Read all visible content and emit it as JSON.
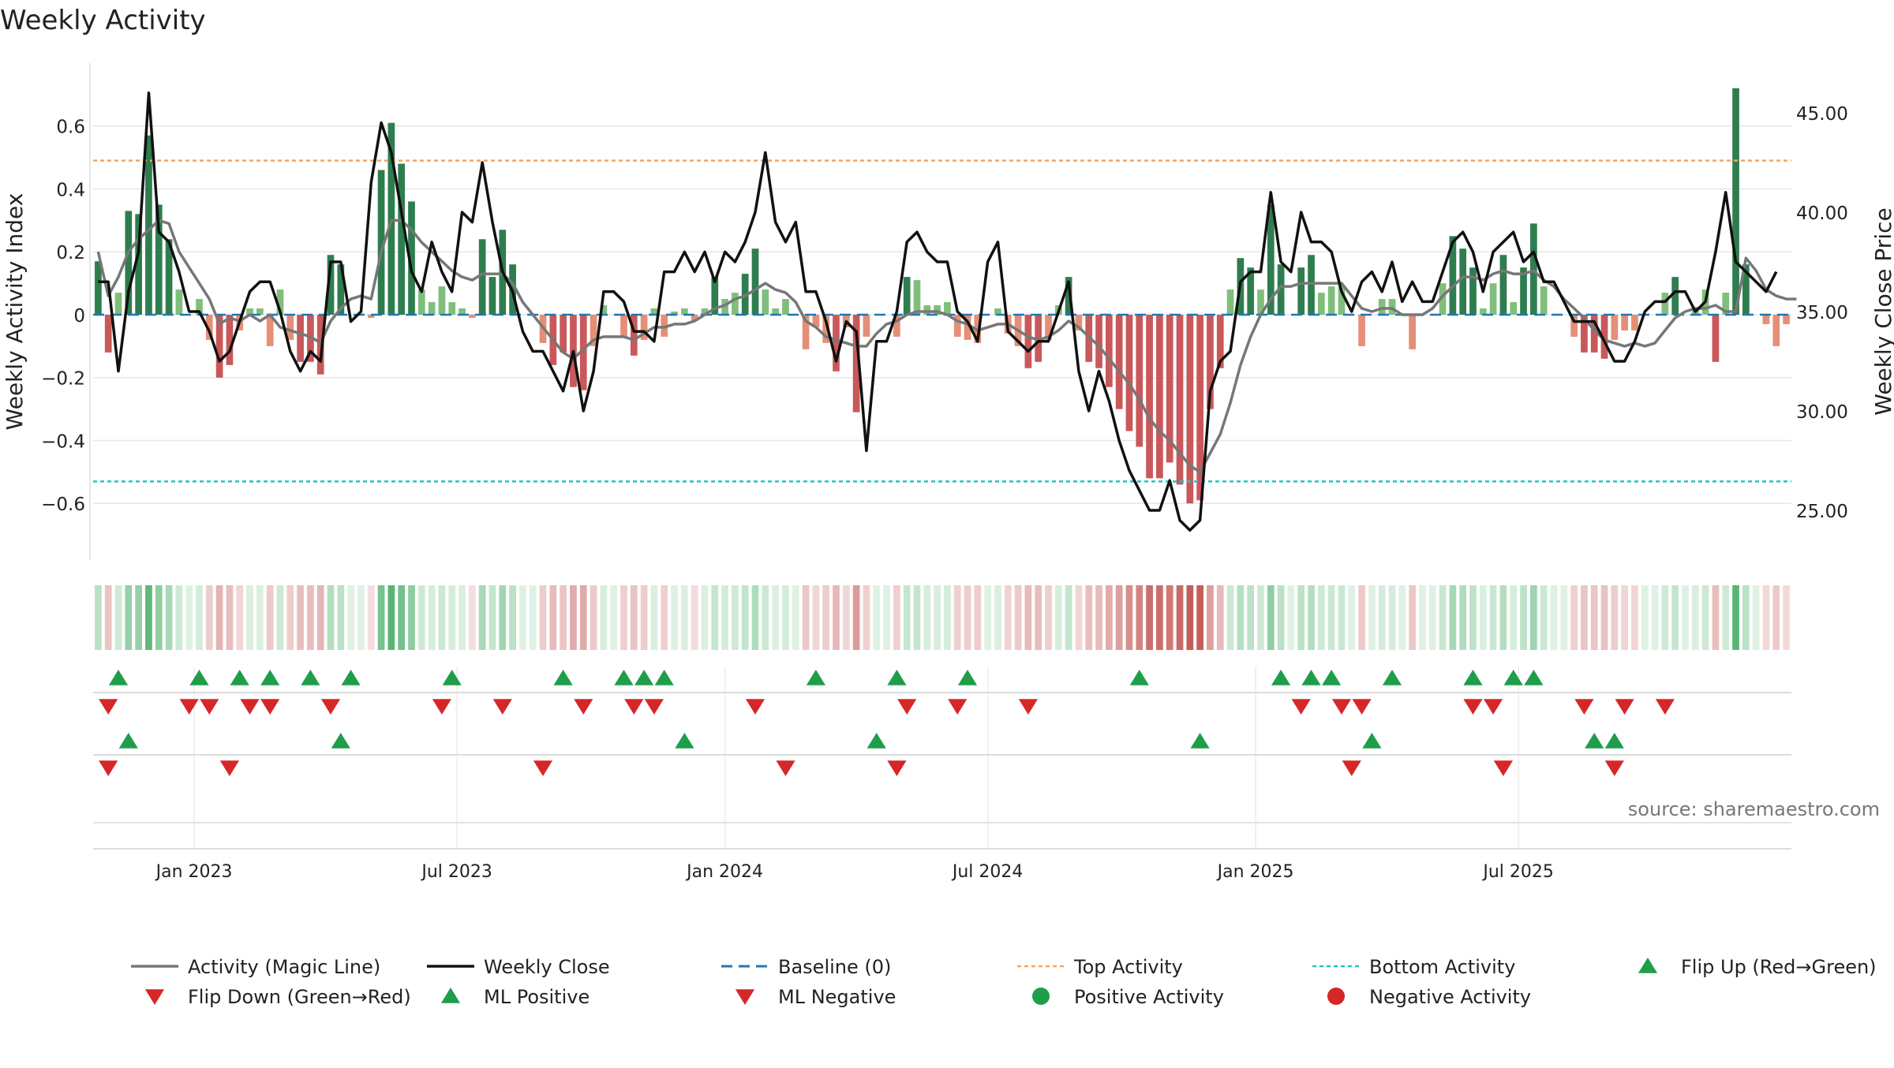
{
  "chart_title": "Weekly Activity",
  "source_note": "source: sharemaestro.com",
  "colors": {
    "strong_green": "#2e7d4f",
    "light_green": "#7fbf7b",
    "strong_red": "#c9585a",
    "light_red": "#e58f77",
    "close_line": "#111111",
    "magic_line": "#777777",
    "top_line": "#f4a460",
    "bottom_line": "#20c4c4",
    "baseline": "#1f77b4",
    "marker_green": "#1e9e4a",
    "marker_red": "#d62728"
  },
  "chart_data": {
    "type": "bar",
    "title": "Weekly Activity",
    "ylabel_left": "Weekly Activity Index",
    "ylabel_right": "Weekly Close Price",
    "ylim_left": [
      -0.78,
      0.8
    ],
    "ylim_right": [
      22.5,
      47.5
    ],
    "yticks_left": [
      0.6,
      0.4,
      0.2,
      0,
      -0.2,
      -0.4,
      -0.6
    ],
    "yticks_left_labels": [
      "0.6",
      "0.4",
      "0.2",
      "0",
      "−0.2",
      "−0.4",
      "−0.6"
    ],
    "yticks_right": [
      45,
      40,
      35,
      30,
      25
    ],
    "yticks_right_labels": [
      "45.00",
      "40.00",
      "35.00",
      "30.00",
      "25.00"
    ],
    "x_start": "2022-10-21",
    "x_ticks": [
      {
        "label": "Jan 2023",
        "week": 10
      },
      {
        "label": "Jul 2023",
        "week": 36
      },
      {
        "label": "Jan 2024",
        "week": 62.5
      },
      {
        "label": "Jul 2024",
        "week": 88.5
      },
      {
        "label": "Jan 2025",
        "week": 115
      },
      {
        "label": "Jul 2025",
        "week": 141
      }
    ],
    "top_activity": 0.49,
    "bottom_activity": -0.53,
    "activity": [
      0.17,
      -0.12,
      0.07,
      0.33,
      0.32,
      0.57,
      0.35,
      0.24,
      0.08,
      0,
      0.05,
      -0.08,
      -0.2,
      -0.16,
      -0.05,
      0.02,
      0.02,
      -0.1,
      0.08,
      -0.08,
      -0.15,
      -0.15,
      -0.19,
      0.19,
      0.16,
      0,
      0,
      -0.01,
      0.46,
      0.61,
      0.48,
      0.36,
      0.08,
      0.04,
      0.09,
      0.04,
      0.02,
      -0.01,
      0.24,
      0.12,
      0.27,
      0.16,
      0,
      0,
      -0.09,
      -0.16,
      -0.12,
      -0.23,
      -0.24,
      -0.1,
      0.03,
      0,
      -0.07,
      -0.13,
      -0.08,
      0.02,
      -0.07,
      0.01,
      0.02,
      -0.02,
      0.02,
      0.12,
      0.05,
      0.07,
      0.13,
      0.21,
      0.08,
      0.02,
      0.05,
      0,
      -0.11,
      -0.04,
      -0.09,
      -0.18,
      -0.04,
      -0.31,
      -0.07,
      0,
      0,
      -0.07,
      0.12,
      0.11,
      0.03,
      0.03,
      0.04,
      -0.07,
      -0.08,
      -0.09,
      0,
      0.02,
      -0.06,
      -0.1,
      -0.17,
      -0.15,
      -0.08,
      0.03,
      0.12,
      -0.05,
      -0.15,
      -0.17,
      -0.23,
      -0.3,
      -0.37,
      -0.42,
      -0.52,
      -0.52,
      -0.47,
      -0.54,
      -0.6,
      -0.59,
      -0.3,
      -0.17,
      0.08,
      0.18,
      0.15,
      0.08,
      0.35,
      0.16,
      0,
      0.15,
      0.19,
      0.07,
      0.09,
      0.09,
      0,
      -0.1,
      0,
      0.05,
      0.05,
      0,
      -0.11,
      0,
      0,
      0.1,
      0.25,
      0.21,
      0.15,
      0.02,
      0.1,
      0.19,
      0.04,
      0.15,
      0.29,
      0.09,
      0,
      0,
      -0.07,
      -0.12,
      -0.12,
      -0.14,
      -0.08,
      -0.05,
      -0.05,
      0,
      0,
      0.07,
      0.12,
      0,
      0.02,
      0.08,
      -0.15,
      0.07,
      0.72,
      0.16,
      0,
      -0.03,
      -0.1,
      -0.03
    ],
    "magic_line": [
      0.2,
      0.06,
      0.12,
      0.2,
      0.24,
      0.27,
      0.3,
      0.29,
      0.2,
      0.15,
      0.1,
      0.05,
      -0.03,
      -0.01,
      -0.02,
      0,
      -0.02,
      0,
      -0.04,
      -0.05,
      -0.06,
      -0.07,
      -0.09,
      -0.02,
      0.02,
      0.05,
      0.06,
      0.05,
      0.2,
      0.3,
      0.3,
      0.27,
      0.23,
      0.2,
      0.17,
      0.14,
      0.12,
      0.11,
      0.13,
      0.13,
      0.13,
      0.1,
      0.04,
      0,
      -0.04,
      -0.08,
      -0.12,
      -0.14,
      -0.11,
      -0.08,
      -0.07,
      -0.07,
      -0.07,
      -0.08,
      -0.06,
      -0.04,
      -0.04,
      -0.03,
      -0.03,
      -0.02,
      0,
      0.02,
      0.03,
      0.05,
      0.06,
      0.08,
      0.1,
      0.08,
      0.07,
      0.04,
      -0.02,
      -0.04,
      -0.07,
      -0.08,
      -0.09,
      -0.1,
      -0.1,
      -0.06,
      -0.03,
      -0.02,
      0,
      0.01,
      0.01,
      0.01,
      0,
      -0.02,
      -0.03,
      -0.05,
      -0.04,
      -0.03,
      -0.03,
      -0.05,
      -0.07,
      -0.08,
      -0.07,
      -0.05,
      -0.02,
      -0.04,
      -0.07,
      -0.1,
      -0.14,
      -0.18,
      -0.22,
      -0.27,
      -0.33,
      -0.37,
      -0.4,
      -0.44,
      -0.48,
      -0.5,
      -0.44,
      -0.38,
      -0.28,
      -0.16,
      -0.07,
      0,
      0.05,
      0.09,
      0.09,
      0.1,
      0.1,
      0.1,
      0.1,
      0.1,
      0.06,
      0.02,
      0.01,
      0.02,
      0.02,
      0,
      0,
      0,
      0.02,
      0.06,
      0.09,
      0.12,
      0.12,
      0.11,
      0.13,
      0.14,
      0.13,
      0.13,
      0.14,
      0.11,
      0.09,
      0.05,
      0.02,
      -0.01,
      -0.05,
      -0.08,
      -0.09,
      -0.1,
      -0.09,
      -0.1,
      -0.09,
      -0.05,
      -0.01,
      0.01,
      0.02,
      0.02,
      0.03,
      0.01,
      0.01,
      0.18,
      0.14,
      0.08,
      0.06,
      0.05,
      0.05
    ],
    "weekly_close": [
      36.5,
      36.5,
      32,
      36,
      38,
      46,
      39,
      38.5,
      37,
      35,
      35,
      34,
      32.5,
      33,
      34.5,
      36,
      36.5,
      36.5,
      35,
      33,
      32,
      33,
      32.5,
      37.5,
      37.5,
      34.5,
      35,
      41.5,
      44.5,
      43,
      40,
      37,
      36,
      38.5,
      37,
      36,
      40,
      39.5,
      42.5,
      39.5,
      37,
      36,
      34,
      33,
      33,
      32,
      31,
      33,
      30,
      32,
      36,
      36,
      35.5,
      34,
      34,
      33.5,
      37,
      37,
      38,
      37,
      38,
      36.5,
      38,
      37.5,
      38.5,
      40,
      43,
      39.5,
      38.5,
      39.5,
      36,
      36,
      34.5,
      32.5,
      34.5,
      34,
      28,
      33.5,
      33.5,
      35,
      38.5,
      39,
      38,
      37.5,
      37.5,
      35,
      34.5,
      33.5,
      37.5,
      38.5,
      34,
      33.5,
      33,
      33.5,
      33.5,
      35,
      36.5,
      32,
      30,
      32,
      30.5,
      28.5,
      27,
      26,
      25,
      25,
      26.5,
      24.5,
      24,
      24.5,
      31,
      32.5,
      33,
      36.5,
      37,
      37,
      41,
      37.5,
      37,
      40,
      38.5,
      38.5,
      38,
      36,
      35,
      36.5,
      37,
      36,
      37.5,
      35.5,
      36.5,
      35.5,
      35.5,
      37,
      38.5,
      39,
      38,
      36,
      38,
      38.5,
      39,
      37.5,
      38,
      36.5,
      36.5,
      35.5,
      34.5,
      34.5,
      34.5,
      33.5,
      32.5,
      32.5,
      33.5,
      35,
      35.5,
      35.5,
      36,
      36,
      35,
      35.5,
      38,
      41,
      37.5,
      37,
      36.5,
      36,
      37
    ]
  },
  "signal_rows": [
    {
      "name": "flip-up-row",
      "shape": "up",
      "color": "marker_green",
      "weeks": [
        2,
        10,
        14,
        17,
        21,
        25,
        35,
        46,
        52,
        54,
        56,
        71,
        79,
        86,
        103,
        117,
        120,
        122,
        128,
        136,
        140,
        142
      ]
    },
    {
      "name": "flip-down-row",
      "shape": "down",
      "color": "marker_red",
      "weeks": [
        1,
        9,
        11,
        15,
        17,
        23,
        34,
        40,
        48,
        53,
        55,
        65,
        80,
        85,
        92,
        119,
        123,
        125,
        136,
        138,
        147,
        151,
        155
      ]
    },
    {
      "name": "ml-positive-row",
      "shape": "up",
      "color": "marker_green",
      "weeks": [
        3,
        24,
        58,
        77,
        109,
        126,
        148,
        150
      ]
    },
    {
      "name": "ml-negative-row",
      "shape": "down",
      "color": "marker_red",
      "weeks": [
        1,
        13,
        44,
        68,
        79,
        124,
        139,
        150
      ]
    }
  ],
  "legend": [
    {
      "label": "Activity (Magic Line)",
      "type": "line",
      "color": "magic_line"
    },
    {
      "label": "Weekly Close",
      "type": "line",
      "color": "close_line"
    },
    {
      "label": "Baseline (0)",
      "type": "dash",
      "color": "baseline"
    },
    {
      "label": "Top Activity",
      "type": "dot",
      "color": "top_line"
    },
    {
      "label": "Bottom Activity",
      "type": "dot",
      "color": "bottom_line"
    },
    {
      "label": "Flip Up (Red→Green)",
      "type": "tri-up",
      "color": "marker_green"
    },
    {
      "label": "Flip Down (Green→Red)",
      "type": "tri-down",
      "color": "marker_red"
    },
    {
      "label": "ML Positive",
      "type": "tri-up",
      "color": "marker_green"
    },
    {
      "label": "ML Negative",
      "type": "tri-down",
      "color": "marker_red"
    },
    {
      "label": "Positive Activity",
      "type": "circle",
      "color": "marker_green"
    },
    {
      "label": "Negative Activity",
      "type": "circle",
      "color": "marker_red"
    }
  ]
}
